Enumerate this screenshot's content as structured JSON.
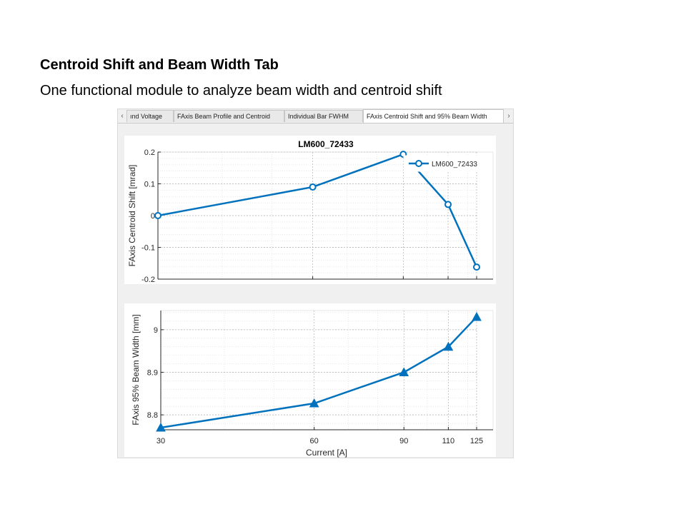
{
  "slide": {
    "title": "Centroid Shift and Beam Width Tab",
    "subtitle": "One functional module to analyze beam width and centroid shift"
  },
  "tabs": [
    {
      "label": "ınd Voltage",
      "active": false
    },
    {
      "label": "FAxis Beam Profile and Centroid",
      "active": false
    },
    {
      "label": "Individual Bar FWHM",
      "active": false
    },
    {
      "label": "FAxis Centroid Shift and 95% Beam Width",
      "active": true
    }
  ],
  "tab_arrows": {
    "left": "‹",
    "right": "›"
  },
  "colors": {
    "series": "#0072bd",
    "grid": "#b0b0b0",
    "axis": "#262626"
  },
  "chart_data": [
    {
      "type": "line",
      "title": "LM600_72433",
      "xlabel": "",
      "ylabel": "FAxis Centroid Shift [mrad]",
      "x": [
        30,
        60,
        90,
        110,
        125
      ],
      "x_scale": "log",
      "xlim": [
        30,
        125
      ],
      "ylim": [
        -0.2,
        0.2
      ],
      "yticks": [
        -0.2,
        -0.1,
        0,
        0.1,
        0.2
      ],
      "ytick_labels": [
        "-0.2",
        "-0.1",
        "0",
        "0.1",
        "0.2"
      ],
      "xtick_labels": [],
      "grid": true,
      "legend": "top-right",
      "series": [
        {
          "name": "LM600_72433",
          "marker": "circle",
          "values": [
            0.0,
            0.09,
            0.193,
            0.035,
            -0.162
          ]
        }
      ]
    },
    {
      "type": "line",
      "title": "",
      "xlabel": "Current [A]",
      "ylabel": "FAxis 95% Beam Width [mm]",
      "x": [
        30,
        60,
        90,
        110,
        125
      ],
      "x_scale": "log",
      "xlim": [
        30,
        125
      ],
      "ylim": [
        8.765,
        9.045
      ],
      "yticks": [
        8.8,
        8.9,
        9
      ],
      "ytick_labels": [
        "8.8",
        "8.9",
        "9"
      ],
      "xtick_labels": [
        "30",
        "60",
        "90",
        "110",
        "125"
      ],
      "grid": true,
      "legend": "none",
      "series": [
        {
          "marker": "triangle",
          "values": [
            8.77,
            8.827,
            8.9,
            8.96,
            9.03
          ]
        }
      ]
    }
  ]
}
